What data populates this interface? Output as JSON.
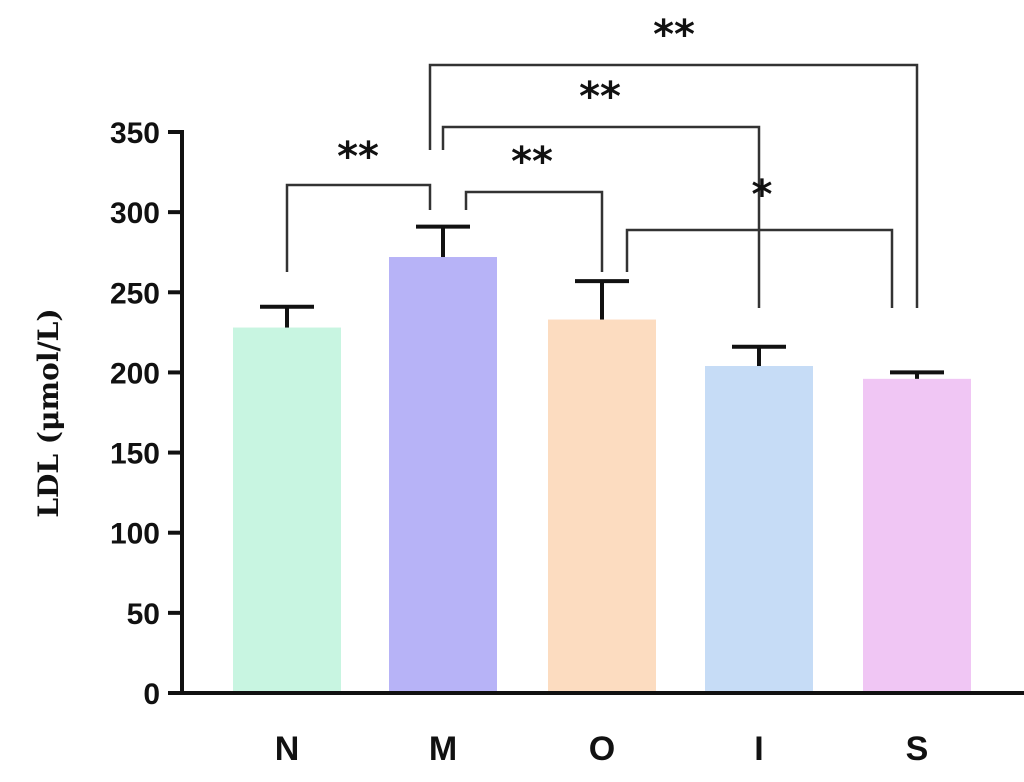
{
  "chart_data": {
    "type": "bar",
    "ylabel": "LDL (μmol/L)",
    "ylim": [
      0,
      350
    ],
    "yticks": [
      0,
      50,
      100,
      150,
      200,
      250,
      300,
      350
    ],
    "categories": [
      "N",
      "M",
      "O",
      "I",
      "S"
    ],
    "values": [
      228,
      272,
      233,
      204,
      196
    ],
    "errors": [
      13,
      19,
      24,
      12,
      4
    ],
    "colors": [
      "#c8f5e1",
      "#b7b3f7",
      "#fcdcc0",
      "#c6dcf6",
      "#f0c6f4"
    ],
    "significance": [
      {
        "from": "N",
        "to": "M",
        "label": "**"
      },
      {
        "from": "M",
        "to": "O",
        "label": "**"
      },
      {
        "from": "M",
        "to": "I",
        "label": "**"
      },
      {
        "from": "M",
        "to": "S",
        "label": "**"
      },
      {
        "from": "O",
        "to": "S",
        "label": "*"
      }
    ]
  }
}
